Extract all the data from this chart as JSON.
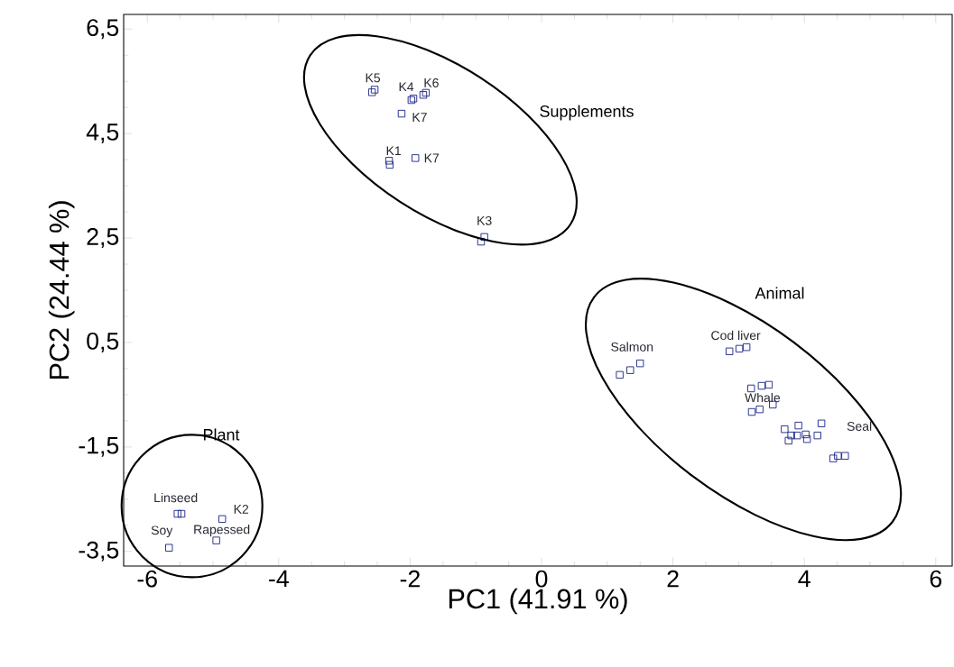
{
  "chart_data": {
    "type": "scatter",
    "xlabel": "PC1 (41.91 %)",
    "ylabel": "PC2 (24.44 %)",
    "x": [
      -2.58,
      -2.54,
      -1.98,
      -1.95,
      -1.8,
      -1.76,
      -2.13,
      -2.32,
      -2.31,
      -1.92,
      -0.92,
      -0.87,
      1.19,
      1.35,
      1.5,
      2.86,
      3.01,
      3.12,
      3.19,
      3.35,
      3.46,
      3.52,
      3.2,
      3.32,
      3.7,
      3.91,
      4.26,
      3.8,
      3.89,
      4.02,
      4.2,
      3.76,
      4.04,
      4.44,
      4.51,
      4.62,
      -5.54,
      -5.48,
      -4.86,
      -4.95,
      -5.67
    ],
    "values": [
      5.29,
      5.34,
      5.14,
      5.17,
      5.24,
      5.28,
      4.88,
      3.98,
      3.9,
      4.03,
      2.43,
      2.52,
      -0.12,
      -0.03,
      0.1,
      0.33,
      0.38,
      0.41,
      -0.38,
      -0.33,
      -0.31,
      -0.69,
      -0.83,
      -0.78,
      -1.16,
      -1.09,
      -1.05,
      -1.28,
      -1.28,
      -1.26,
      -1.28,
      -1.38,
      -1.35,
      -1.72,
      -1.67,
      -1.67,
      -2.78,
      -2.78,
      -2.88,
      -3.29,
      -3.43
    ],
    "color": "#1f2a8a",
    "marker": "square",
    "grid": false,
    "xlim": [
      -6.36,
      6.25
    ],
    "ylim": [
      -3.78,
      6.78
    ],
    "xticks": [
      -6,
      -4,
      -2,
      0,
      2,
      4,
      6
    ],
    "yticks": [
      {
        "value": -3.5,
        "label": "-3,5"
      },
      {
        "value": -1.5,
        "label": "-1,5"
      },
      {
        "value": 0.5,
        "label": "0,5"
      },
      {
        "value": 2.5,
        "label": "2,5"
      },
      {
        "value": 4.5,
        "label": "4,5"
      },
      {
        "value": 6.5,
        "label": "6,5"
      }
    ],
    "annotations": [
      {
        "text": "K5",
        "x": -2.54,
        "y": 5.34
      },
      {
        "text": "K4",
        "x": -1.95,
        "y": 5.17
      },
      {
        "text": "K6",
        "x": -1.76,
        "y": 5.28
      },
      {
        "text": "K7",
        "x": -2.13,
        "y": 4.88
      },
      {
        "text": "K1",
        "x": -2.32,
        "y": 3.98
      },
      {
        "text": "K7",
        "x": -1.92,
        "y": 4.03
      },
      {
        "text": "K3",
        "x": -0.87,
        "y": 2.52
      },
      "Supplements",
      "Animal",
      "Plant",
      {
        "text": "Salmon",
        "x": 1.35,
        "y": -0.03
      },
      {
        "text": "Cod liver",
        "x": 3.01,
        "y": 0.38
      },
      {
        "text": "Whale",
        "x": 3.35,
        "y": -0.33
      },
      {
        "text": "Seal",
        "x": 4.26,
        "y": -1.05
      },
      {
        "text": "Linseed",
        "x": -5.54,
        "y": -2.78
      },
      {
        "text": "K2",
        "x": -4.86,
        "y": -2.88
      },
      {
        "text": "Rapessed",
        "x": -4.95,
        "y": -3.29
      },
      {
        "text": "Soy",
        "x": -5.67,
        "y": -3.43
      }
    ]
  }
}
